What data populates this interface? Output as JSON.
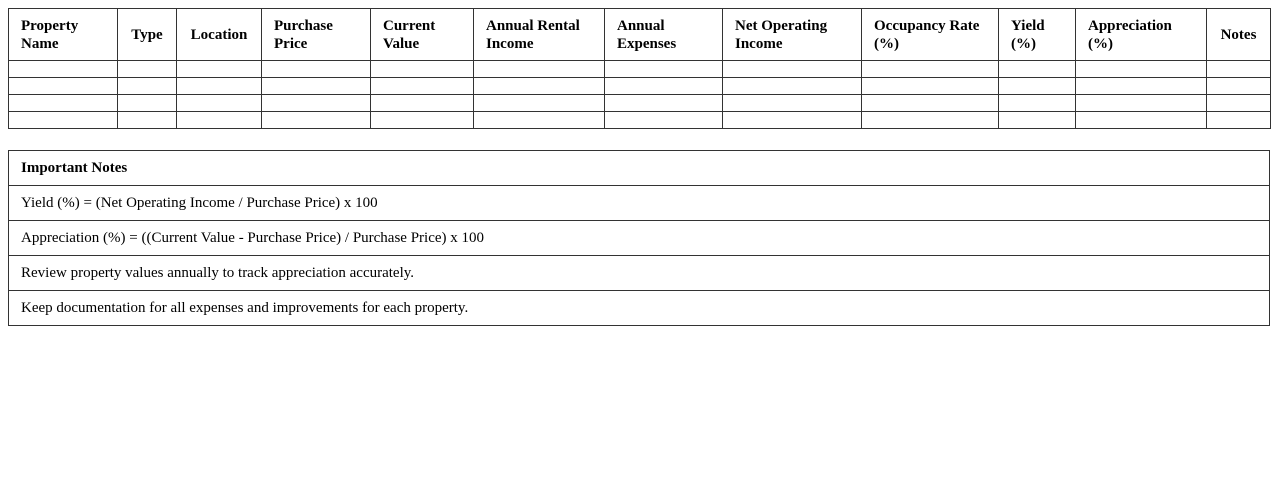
{
  "property_table": {
    "headers": [
      "Property Name",
      "Type",
      "Location",
      "Purchase Price",
      "Current Value",
      "Annual Rental Income",
      "Annual Expenses",
      "Net Operating Income",
      "Occupancy Rate (%)",
      "Yield (%)",
      "Appreciation (%)",
      "Notes"
    ],
    "rows": [
      [
        "",
        "",
        "",
        "",
        "",
        "",
        "",
        "",
        "",
        "",
        "",
        ""
      ],
      [
        "",
        "",
        "",
        "",
        "",
        "",
        "",
        "",
        "",
        "",
        "",
        ""
      ],
      [
        "",
        "",
        "",
        "",
        "",
        "",
        "",
        "",
        "",
        "",
        "",
        ""
      ],
      [
        "",
        "",
        "",
        "",
        "",
        "",
        "",
        "",
        "",
        "",
        "",
        ""
      ]
    ]
  },
  "notes": {
    "title": "Important Notes",
    "items": [
      "Yield (%) = (Net Operating Income / Purchase Price) x 100",
      "Appreciation (%) = ((Current Value - Purchase Price) / Purchase Price) x 100",
      "Review property values annually to track appreciation accurately.",
      "Keep documentation for all expenses and improvements for each property."
    ]
  },
  "colors": {
    "border": "#333333",
    "text": "#000000",
    "background": "#ffffff"
  }
}
